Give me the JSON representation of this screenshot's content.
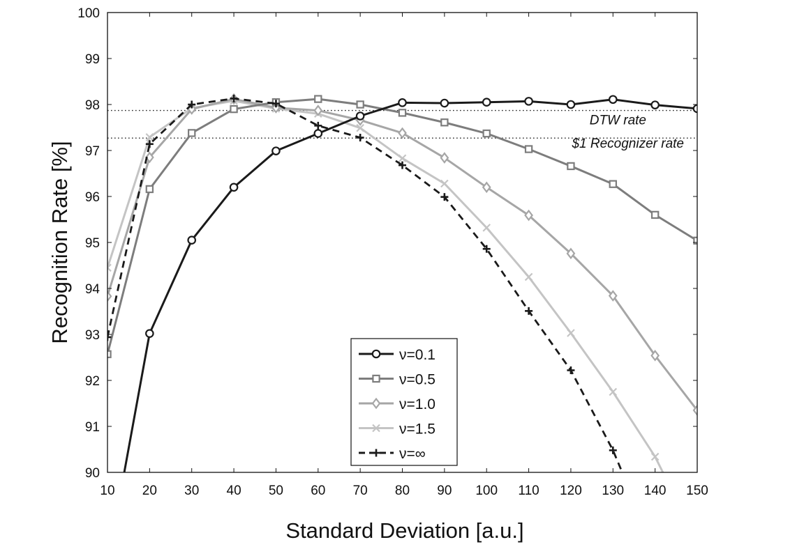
{
  "chart_data": {
    "type": "line",
    "title": "",
    "xlabel": "Standard Deviation [a.u.]",
    "ylabel": "Recognition Rate [%]",
    "xlim": [
      10,
      150
    ],
    "ylim": [
      90,
      100
    ],
    "x_ticks": [
      10,
      20,
      30,
      40,
      50,
      60,
      70,
      80,
      90,
      100,
      110,
      120,
      130,
      140,
      150
    ],
    "y_ticks": [
      90,
      91,
      92,
      93,
      94,
      95,
      96,
      97,
      98,
      99,
      100
    ],
    "grid": false,
    "legend_position": "bottom-center",
    "reference_lines": [
      {
        "label": "DTW rate",
        "y": 97.87,
        "style": "dotted"
      },
      {
        "label": "$1 Recognizer rate",
        "y": 97.27,
        "style": "dotted"
      }
    ],
    "series": [
      {
        "name": "ν=0.1",
        "color": "#1a1a1a",
        "marker": "circle",
        "dash": "solid",
        "x": [
          20,
          30,
          40,
          50,
          60,
          70,
          80,
          90,
          100,
          110,
          120,
          130,
          140,
          150
        ],
        "y": [
          93.02,
          95.05,
          96.2,
          96.99,
          97.37,
          97.75,
          98.04,
          98.03,
          98.05,
          98.07,
          98.0,
          98.11,
          97.99,
          97.91
        ],
        "lead_in": {
          "x": 10,
          "y": 88.0
        }
      },
      {
        "name": "ν=0.5",
        "color": "#7d7d7d",
        "marker": "square",
        "dash": "solid",
        "x": [
          10,
          20,
          30,
          40,
          50,
          60,
          70,
          80,
          90,
          100,
          110,
          120,
          130,
          140,
          150
        ],
        "y": [
          92.57,
          96.16,
          97.38,
          97.9,
          98.05,
          98.12,
          98.0,
          97.82,
          97.61,
          97.37,
          97.03,
          96.66,
          96.27,
          95.6,
          95.04
        ]
      },
      {
        "name": "ν=1.0",
        "color": "#a6a6a6",
        "marker": "diamond",
        "dash": "solid",
        "x": [
          10,
          20,
          30,
          40,
          50,
          60,
          70,
          80,
          90,
          100,
          110,
          120,
          130,
          140,
          150
        ],
        "y": [
          93.83,
          96.85,
          97.9,
          98.12,
          97.93,
          97.87,
          97.66,
          97.38,
          96.84,
          96.2,
          95.59,
          94.76,
          93.84,
          92.54,
          91.35
        ]
      },
      {
        "name": "ν=1.5",
        "color": "#c4c4c4",
        "marker": "x",
        "dash": "solid",
        "x": [
          10,
          20,
          30,
          40,
          50,
          60,
          70,
          80,
          90,
          100,
          110,
          120,
          130,
          140,
          150
        ],
        "y": [
          94.45,
          97.29,
          97.92,
          98.08,
          97.91,
          97.8,
          97.49,
          96.83,
          96.28,
          95.32,
          94.25,
          93.03,
          91.75,
          90.34,
          88.5
        ]
      },
      {
        "name": "ν=∞",
        "color": "#1a1a1a",
        "marker": "plus",
        "dash": "dashed",
        "x": [
          10,
          20,
          30,
          40,
          50,
          60,
          70,
          80,
          90,
          100,
          110,
          120,
          130,
          140
        ],
        "y": [
          92.94,
          97.14,
          98.0,
          98.13,
          98.02,
          97.54,
          97.28,
          96.68,
          95.99,
          94.86,
          93.51,
          92.22,
          90.48,
          88.3
        ]
      }
    ]
  }
}
